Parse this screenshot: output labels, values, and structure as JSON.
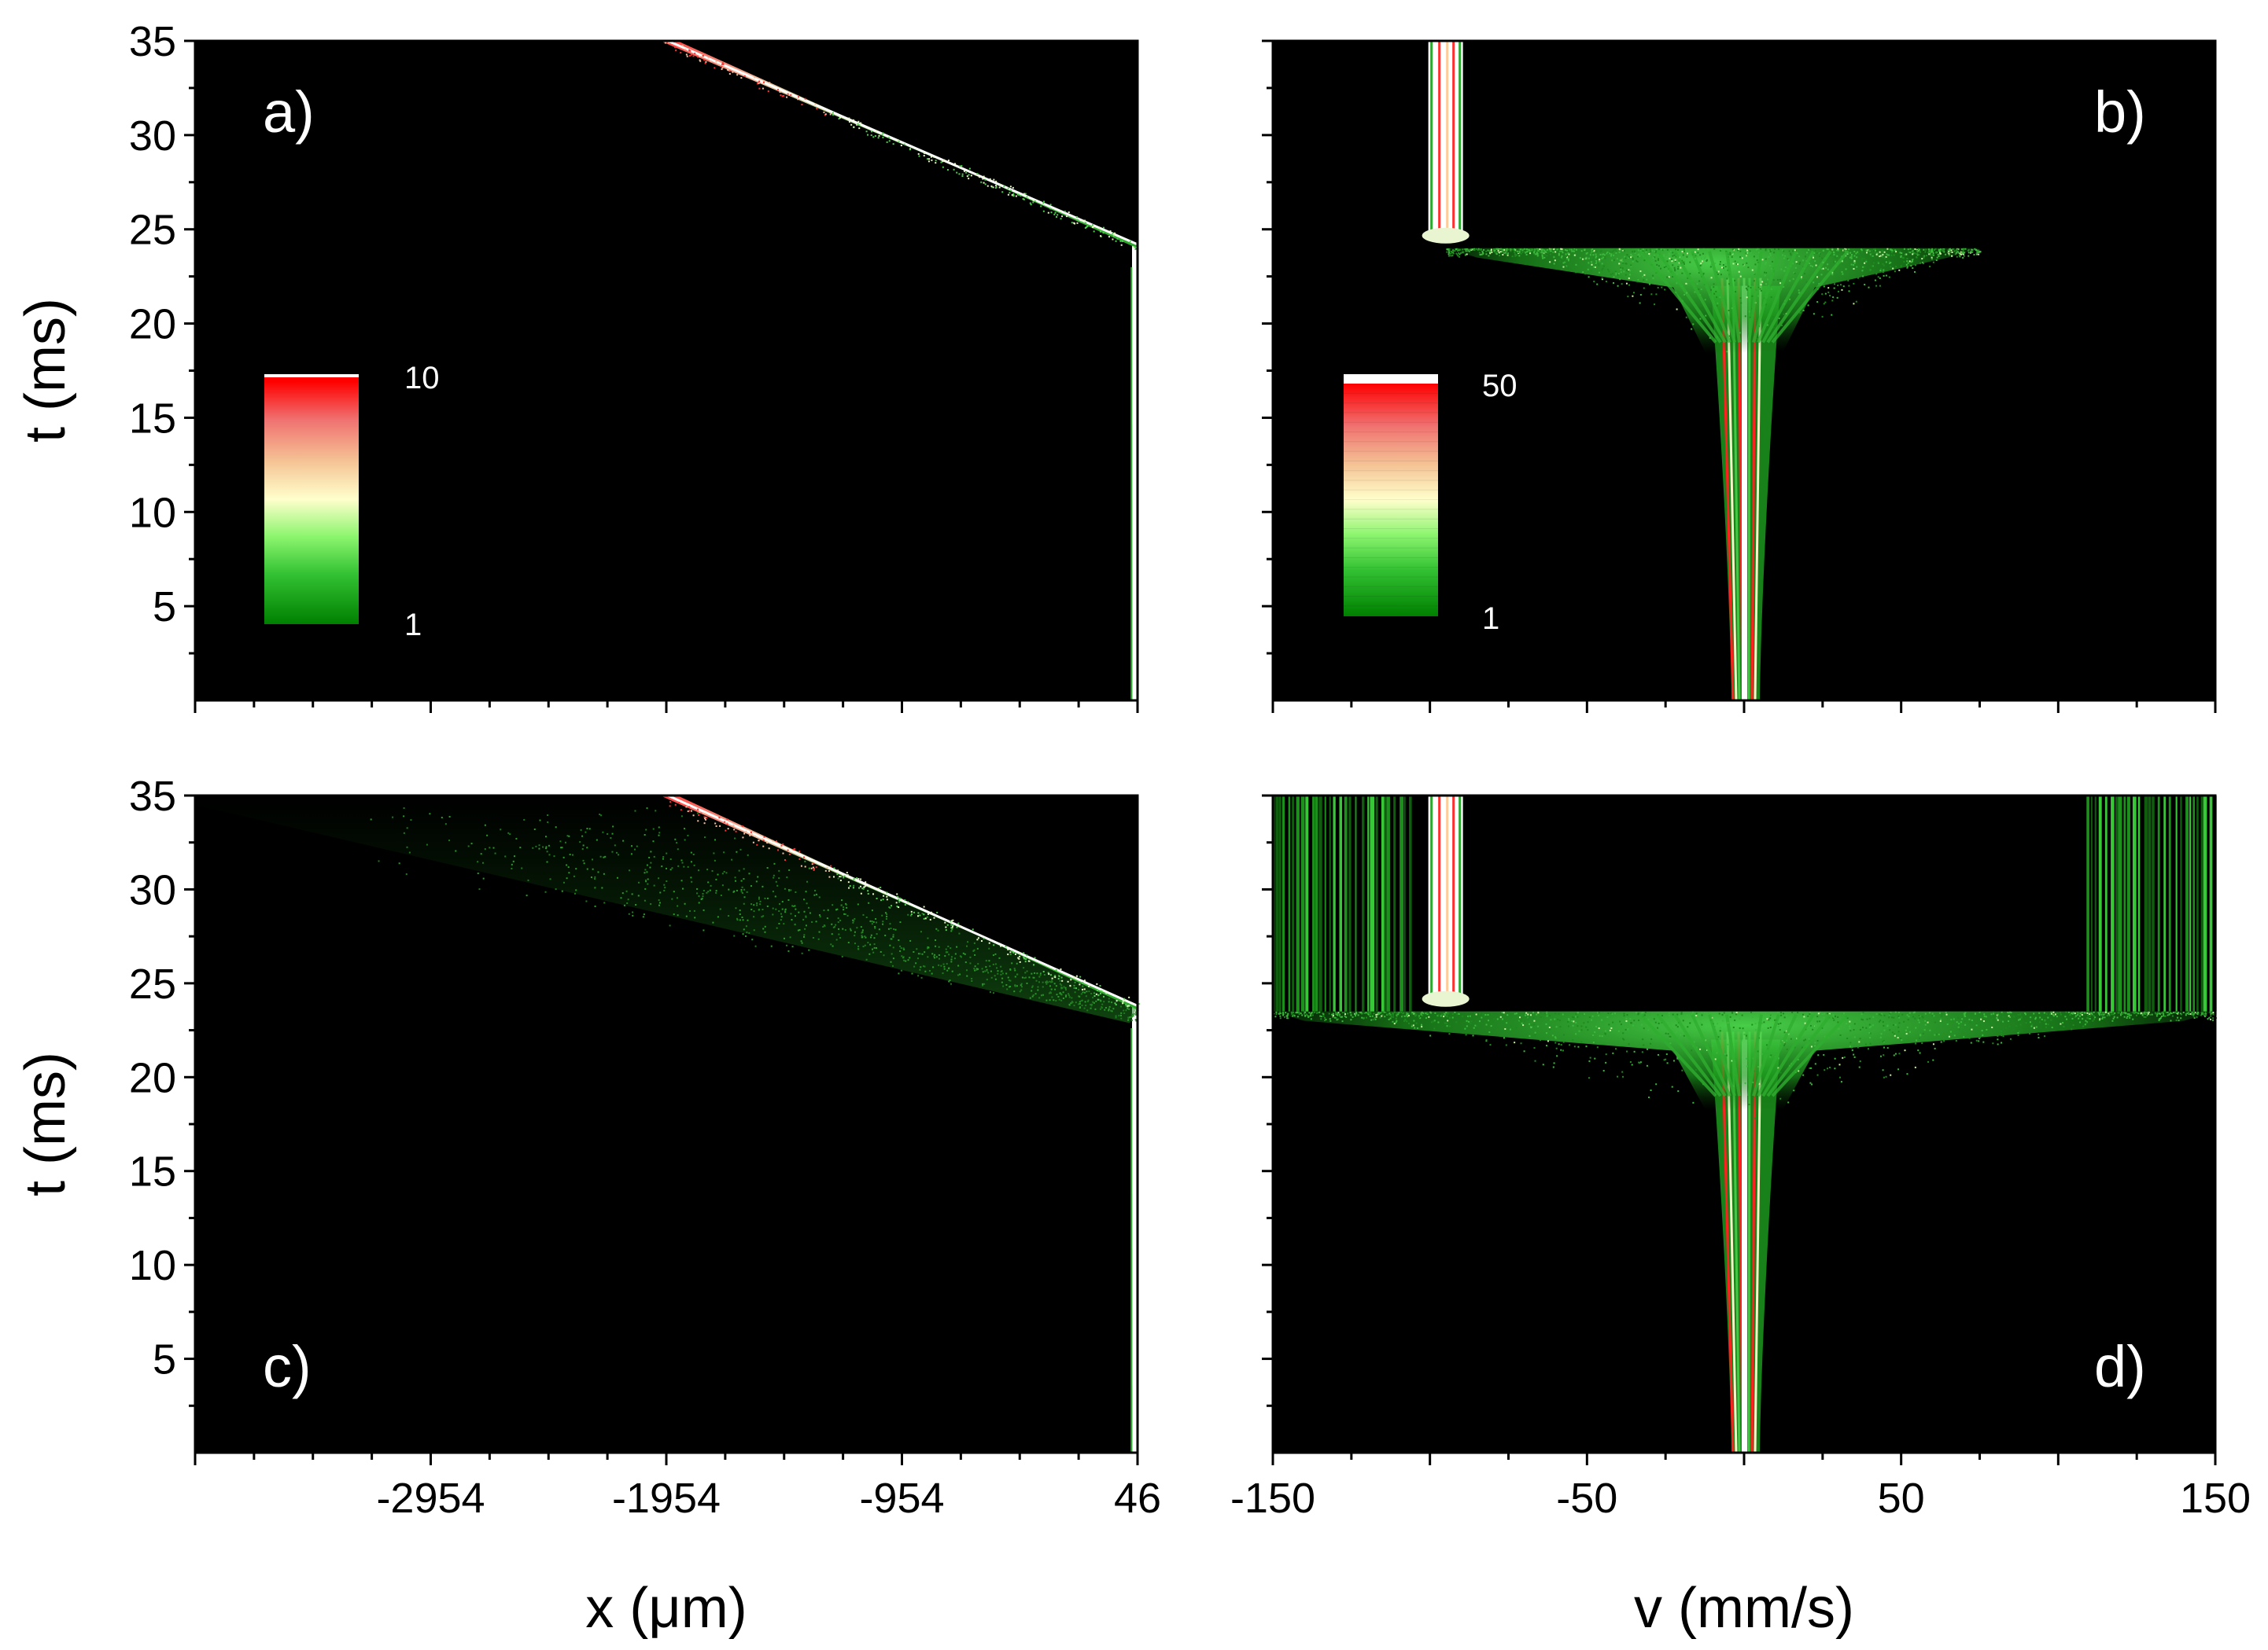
{
  "chart_data": [
    {
      "type": "heatmap",
      "panel_label": "a)",
      "xlabel": "",
      "ylabel": "t (ms)",
      "xlim": [
        -3954,
        46
      ],
      "ylim": [
        0,
        35
      ],
      "x_ticks": [],
      "y_ticks": [
        "5",
        "10",
        "15",
        "20",
        "25",
        "30",
        "35"
      ],
      "colorbar": {
        "min_label": "1",
        "max_label": "10",
        "min": 1,
        "max": 10
      },
      "background_color": "#000000",
      "features": [
        {
          "kind": "vertical_streak",
          "x": 40,
          "t_from": 0,
          "t_to": 24.2
        },
        {
          "kind": "diagonal_streak",
          "points": [
            [
              46,
              24.2
            ],
            [
              -1954,
              35
            ]
          ],
          "spread": "narrow"
        }
      ]
    },
    {
      "type": "heatmap",
      "panel_label": "b)",
      "xlabel": "",
      "ylabel": "",
      "xlim": [
        -150,
        150
      ],
      "ylim": [
        0,
        35
      ],
      "x_ticks": [],
      "y_ticks": [],
      "colorbar": {
        "min_label": "1",
        "max_label": "50",
        "min": 1,
        "max": 50
      },
      "background_color": "#000000",
      "features": [
        {
          "kind": "vertical_column",
          "v": 0,
          "t_from": 0,
          "t_to": 22
        },
        {
          "kind": "fan",
          "v_range": [
            -95,
            75
          ],
          "t": 24
        },
        {
          "kind": "vertical_column",
          "v": -97,
          "t_from": 24.5,
          "t_to": 35
        }
      ]
    },
    {
      "type": "heatmap",
      "panel_label": "c)",
      "xlabel": "x (μm)",
      "ylabel": "t (ms)",
      "xlim": [
        -3954,
        46
      ],
      "ylim": [
        0,
        35
      ],
      "x_ticks": [
        "-2954",
        "-1954",
        "-954",
        "46"
      ],
      "y_ticks": [
        "5",
        "10",
        "15",
        "20",
        "25",
        "30",
        "35"
      ],
      "background_color": "#000000",
      "features": [
        {
          "kind": "vertical_streak",
          "x": 40,
          "t_from": 0,
          "t_to": 23.8
        },
        {
          "kind": "diagonal_streak",
          "points": [
            [
              46,
              23.8
            ],
            [
              -1954,
              35
            ]
          ],
          "spread": "wide"
        }
      ]
    },
    {
      "type": "heatmap",
      "panel_label": "d)",
      "xlabel": "v (mm/s)",
      "ylabel": "",
      "xlim": [
        -150,
        150
      ],
      "ylim": [
        0,
        35
      ],
      "x_ticks": [
        "-150",
        "-50",
        "50",
        "150"
      ],
      "y_ticks": [],
      "background_color": "#000000",
      "features": [
        {
          "kind": "vertical_column",
          "v": 0,
          "t_from": 0,
          "t_to": 22
        },
        {
          "kind": "fan",
          "v_range": [
            -150,
            150
          ],
          "t": 23.5
        },
        {
          "kind": "vertical_column",
          "v": -97,
          "t_from": 24,
          "t_to": 35
        },
        {
          "kind": "green_bars",
          "v_range": [
            -150,
            -105
          ],
          "t_from": 23.5,
          "t_to": 35
        },
        {
          "kind": "green_bars",
          "v_range": [
            109,
            150
          ],
          "t_from": 23.5,
          "t_to": 35
        }
      ]
    }
  ]
}
